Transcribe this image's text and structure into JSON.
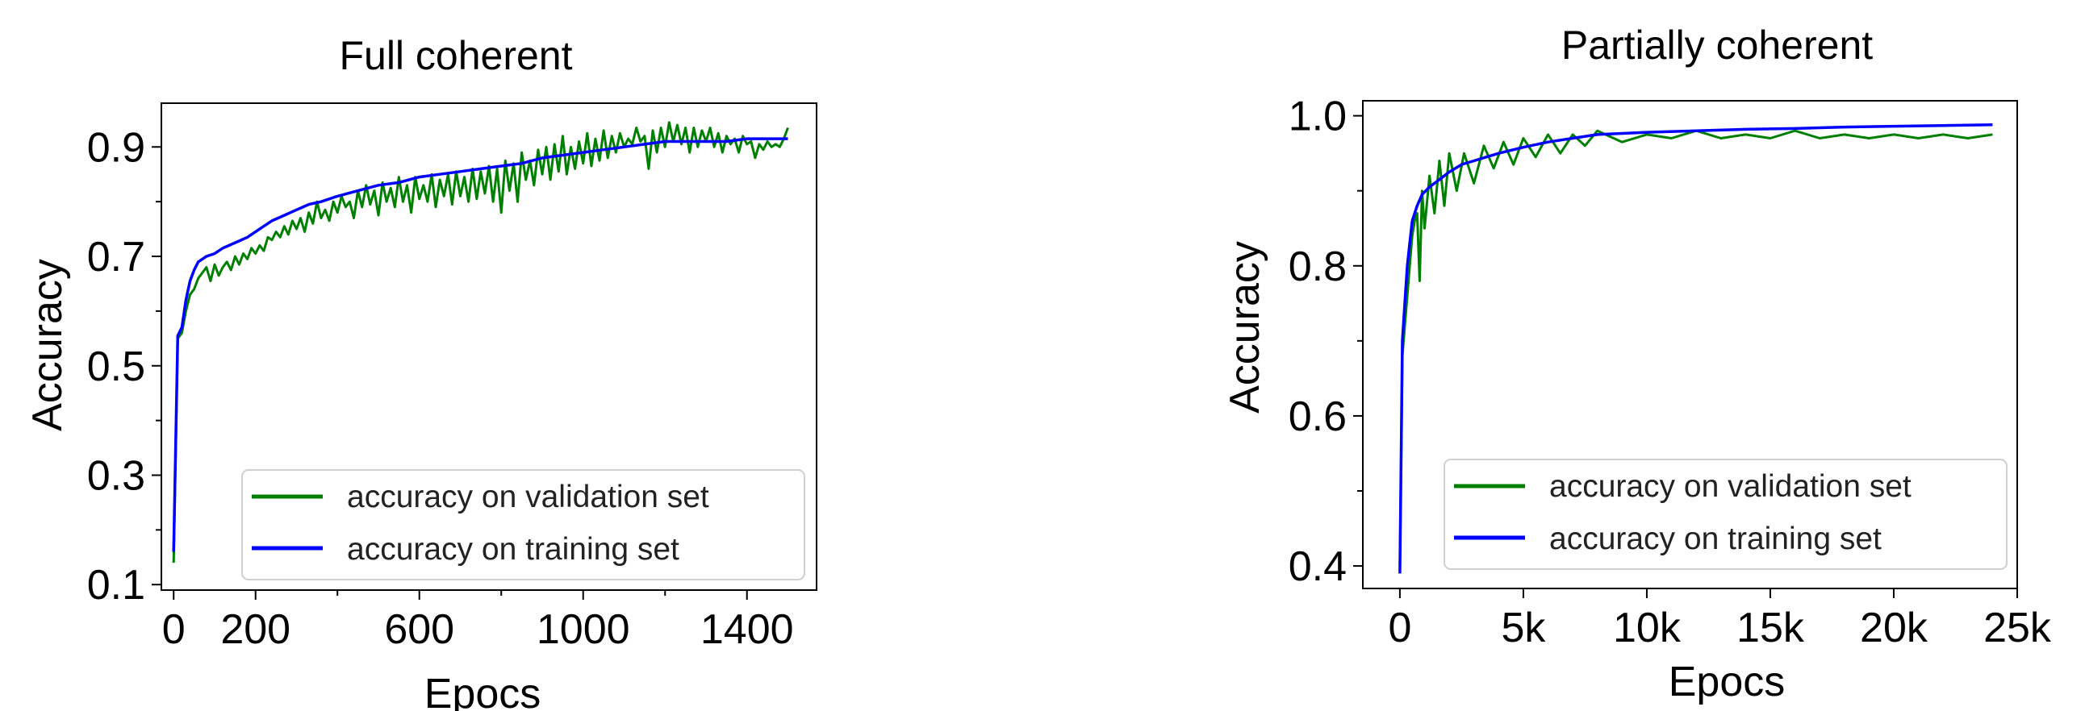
{
  "chart_data": [
    {
      "type": "line",
      "title": "Full coherent",
      "xlabel": "Epocs",
      "ylabel": "Accuracy",
      "xlim": [
        -30,
        1570
      ],
      "ylim": [
        0.09,
        0.98
      ],
      "x_ticks": [
        0,
        200,
        600,
        1000,
        1400
      ],
      "x_minor_ticks": [
        400,
        800,
        1200
      ],
      "y_ticks": [
        0.1,
        0.3,
        0.5,
        0.7,
        0.9
      ],
      "y_minor_ticks": [
        0.2,
        0.4,
        0.6,
        0.8
      ],
      "x_tick_labels": [
        "0",
        "200",
        "600",
        "1000",
        "1400"
      ],
      "y_tick_labels": [
        "0.1",
        "0.3",
        "0.5",
        "0.7",
        "0.9"
      ],
      "legend_position": "lower-right",
      "grid": false,
      "series": [
        {
          "name": "accuracy on validation set",
          "color": "#008000",
          "x": [
            0,
            10,
            20,
            30,
            40,
            50,
            60,
            70,
            80,
            90,
            100,
            110,
            120,
            130,
            140,
            150,
            160,
            170,
            180,
            190,
            200,
            210,
            220,
            230,
            240,
            250,
            260,
            270,
            280,
            290,
            300,
            310,
            320,
            330,
            340,
            350,
            360,
            370,
            380,
            390,
            400,
            410,
            420,
            430,
            440,
            450,
            460,
            470,
            480,
            490,
            500,
            510,
            520,
            530,
            540,
            550,
            560,
            570,
            580,
            590,
            600,
            610,
            620,
            630,
            640,
            650,
            660,
            670,
            680,
            690,
            700,
            710,
            720,
            730,
            740,
            750,
            760,
            770,
            780,
            790,
            800,
            810,
            820,
            830,
            840,
            850,
            860,
            870,
            880,
            890,
            900,
            910,
            920,
            930,
            940,
            950,
            960,
            970,
            980,
            990,
            1000,
            1010,
            1020,
            1030,
            1040,
            1050,
            1060,
            1070,
            1080,
            1090,
            1100,
            1110,
            1120,
            1130,
            1140,
            1150,
            1160,
            1170,
            1180,
            1190,
            1200,
            1210,
            1220,
            1230,
            1240,
            1250,
            1260,
            1270,
            1280,
            1290,
            1300,
            1310,
            1320,
            1330,
            1340,
            1350,
            1360,
            1370,
            1380,
            1390,
            1400,
            1410,
            1420,
            1430,
            1440,
            1450,
            1460,
            1470,
            1480,
            1490,
            1500
          ],
          "y": [
            0.14,
            0.55,
            0.56,
            0.6,
            0.63,
            0.64,
            0.66,
            0.67,
            0.68,
            0.655,
            0.685,
            0.665,
            0.68,
            0.69,
            0.675,
            0.7,
            0.685,
            0.705,
            0.695,
            0.715,
            0.705,
            0.72,
            0.71,
            0.735,
            0.73,
            0.745,
            0.735,
            0.755,
            0.74,
            0.765,
            0.75,
            0.77,
            0.745,
            0.78,
            0.76,
            0.8,
            0.77,
            0.785,
            0.765,
            0.8,
            0.78,
            0.81,
            0.79,
            0.8,
            0.77,
            0.82,
            0.79,
            0.83,
            0.795,
            0.82,
            0.775,
            0.835,
            0.8,
            0.825,
            0.79,
            0.845,
            0.8,
            0.83,
            0.78,
            0.845,
            0.805,
            0.83,
            0.8,
            0.85,
            0.79,
            0.84,
            0.81,
            0.85,
            0.795,
            0.855,
            0.81,
            0.845,
            0.8,
            0.86,
            0.805,
            0.855,
            0.815,
            0.865,
            0.8,
            0.86,
            0.78,
            0.875,
            0.82,
            0.87,
            0.8,
            0.89,
            0.84,
            0.875,
            0.83,
            0.895,
            0.85,
            0.9,
            0.84,
            0.905,
            0.855,
            0.92,
            0.85,
            0.9,
            0.86,
            0.91,
            0.87,
            0.925,
            0.865,
            0.915,
            0.875,
            0.93,
            0.88,
            0.92,
            0.89,
            0.925,
            0.9,
            0.915,
            0.905,
            0.935,
            0.91,
            0.92,
            0.86,
            0.93,
            0.89,
            0.935,
            0.9,
            0.945,
            0.91,
            0.94,
            0.905,
            0.935,
            0.89,
            0.935,
            0.9,
            0.93,
            0.91,
            0.935,
            0.9,
            0.925,
            0.89,
            0.92,
            0.905,
            0.915,
            0.89,
            0.92,
            0.905,
            0.91,
            0.88,
            0.905,
            0.895,
            0.91,
            0.9,
            0.905,
            0.9,
            0.915,
            0.935
          ]
        },
        {
          "name": "accuracy on training set",
          "color": "#0000ff",
          "x": [
            0,
            10,
            20,
            30,
            40,
            50,
            60,
            70,
            80,
            100,
            120,
            150,
            180,
            210,
            240,
            270,
            300,
            330,
            360,
            400,
            450,
            500,
            550,
            600,
            650,
            700,
            750,
            800,
            850,
            900,
            950,
            1000,
            1050,
            1100,
            1150,
            1200,
            1250,
            1300,
            1350,
            1400,
            1450,
            1500
          ],
          "y": [
            0.16,
            0.555,
            0.57,
            0.62,
            0.655,
            0.675,
            0.69,
            0.695,
            0.7,
            0.705,
            0.715,
            0.725,
            0.735,
            0.75,
            0.765,
            0.775,
            0.785,
            0.795,
            0.8,
            0.81,
            0.82,
            0.83,
            0.835,
            0.845,
            0.85,
            0.855,
            0.86,
            0.865,
            0.87,
            0.88,
            0.885,
            0.89,
            0.895,
            0.9,
            0.905,
            0.91,
            0.91,
            0.91,
            0.91,
            0.915,
            0.915,
            0.915
          ]
        }
      ]
    },
    {
      "type": "line",
      "title": "Partially coherent",
      "xlabel": "Epocs",
      "ylabel": "Accuracy",
      "xlim": [
        -1500,
        25000
      ],
      "ylim": [
        0.37,
        1.02
      ],
      "x_ticks": [
        0,
        5000,
        10000,
        15000,
        20000,
        25000
      ],
      "x_tick_labels": [
        "0",
        "5k",
        "10k",
        "15k",
        "20k",
        "25k"
      ],
      "y_ticks": [
        0.4,
        0.6,
        0.8,
        1.0
      ],
      "y_minor_ticks": [
        0.5,
        0.7,
        0.9
      ],
      "y_tick_labels": [
        "0.4",
        "0.6",
        "0.8",
        "1.0"
      ],
      "legend_position": "lower-right",
      "grid": false,
      "series": [
        {
          "name": "accuracy on validation set",
          "color": "#008000",
          "x": [
            0,
            100,
            200,
            300,
            400,
            500,
            600,
            700,
            800,
            900,
            1000,
            1200,
            1400,
            1600,
            1800,
            2000,
            2300,
            2600,
            3000,
            3400,
            3800,
            4200,
            4600,
            5000,
            5500,
            6000,
            6500,
            7000,
            7500,
            8000,
            9000,
            10000,
            11000,
            12000,
            13000,
            14000,
            15000,
            16000,
            17000,
            18000,
            19000,
            20000,
            21000,
            22000,
            23000,
            24000
          ],
          "y": [
            0.4,
            0.68,
            0.72,
            0.76,
            0.8,
            0.84,
            0.86,
            0.87,
            0.78,
            0.9,
            0.85,
            0.92,
            0.87,
            0.94,
            0.88,
            0.95,
            0.9,
            0.95,
            0.91,
            0.96,
            0.93,
            0.965,
            0.935,
            0.97,
            0.945,
            0.975,
            0.95,
            0.975,
            0.96,
            0.98,
            0.965,
            0.975,
            0.97,
            0.98,
            0.97,
            0.975,
            0.97,
            0.98,
            0.97,
            0.975,
            0.97,
            0.975,
            0.97,
            0.975,
            0.97,
            0.975
          ]
        },
        {
          "name": "accuracy on training set",
          "color": "#0000ff",
          "x": [
            0,
            100,
            200,
            300,
            400,
            500,
            700,
            900,
            1200,
            1600,
            2000,
            2500,
            3000,
            3500,
            4000,
            5000,
            6000,
            7000,
            8000,
            10000,
            12000,
            14000,
            16000,
            18000,
            20000,
            22000,
            24000
          ],
          "y": [
            0.39,
            0.7,
            0.75,
            0.8,
            0.83,
            0.86,
            0.88,
            0.895,
            0.905,
            0.915,
            0.925,
            0.935,
            0.94,
            0.945,
            0.95,
            0.958,
            0.965,
            0.97,
            0.975,
            0.978,
            0.98,
            0.982,
            0.983,
            0.985,
            0.986,
            0.987,
            0.988
          ]
        }
      ]
    }
  ]
}
